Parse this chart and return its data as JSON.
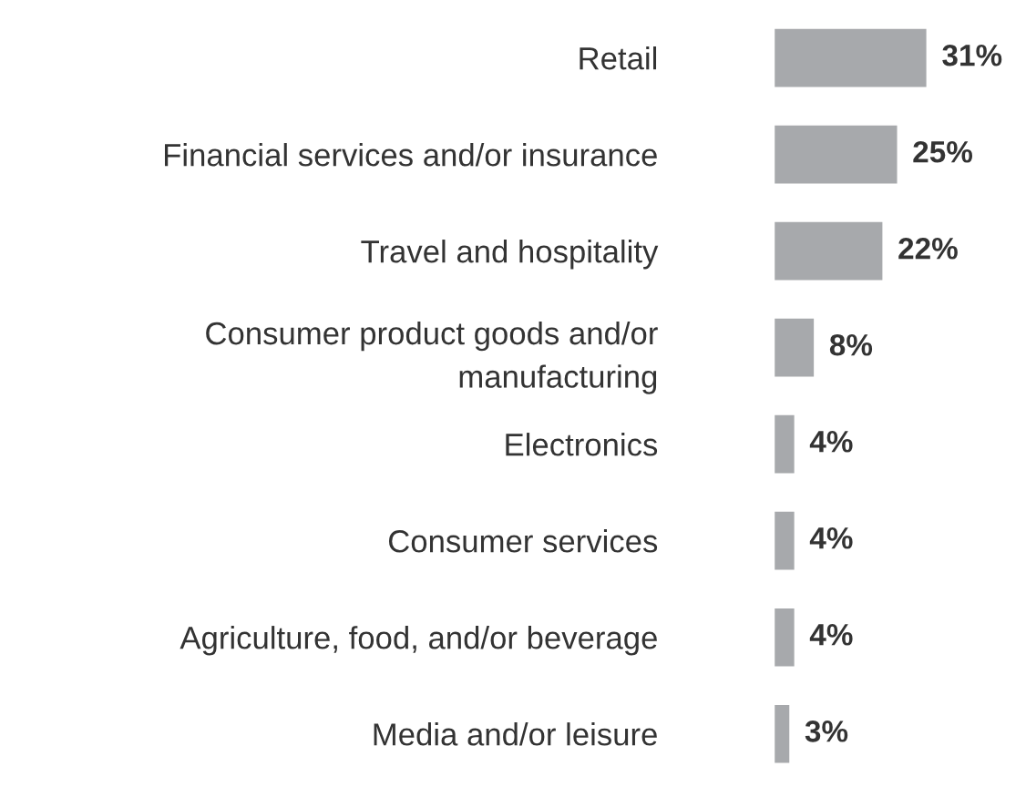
{
  "chart_data": {
    "type": "bar",
    "orientation": "horizontal",
    "categories": [
      "Retail",
      "Financial services and/or insurance",
      "Travel and hospitality",
      "Consumer product goods and/or\nmanufacturing",
      "Electronics",
      "Consumer services",
      "Agriculture, food, and/or beverage",
      "Media and/or leisure"
    ],
    "values": [
      31,
      25,
      22,
      8,
      4,
      4,
      4,
      3
    ],
    "value_labels": [
      "31%",
      "25%",
      "22%",
      "8%",
      "4%",
      "4%",
      "4%",
      "3%"
    ],
    "color": "#a7a9ac",
    "grid": false,
    "legend": false,
    "tick_labels": "y"
  }
}
